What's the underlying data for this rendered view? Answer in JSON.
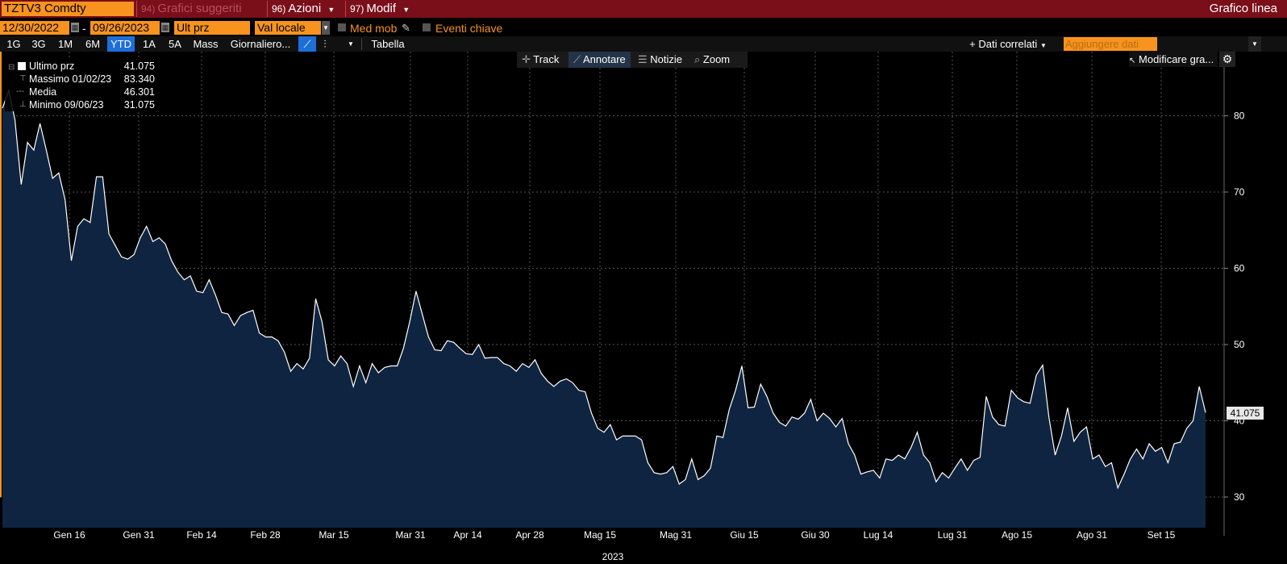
{
  "topbar": {
    "ticker": "TZTV3 Comdty",
    "grafici_num": "94)",
    "grafici_label": "Grafici suggeriti",
    "azioni_num": "96)",
    "azioni_label": "Azioni",
    "modif_num": "97)",
    "modif_label": "Modif",
    "title": "Grafico linea"
  },
  "controls": {
    "start_date": "12/30/2022",
    "end_date": "09/26/2023",
    "date_sep": "-",
    "field": "Ult prz",
    "currency": "Val locale",
    "moving_avg": "Med mob",
    "key_events": "Eventi chiave"
  },
  "periods": [
    "1G",
    "3G",
    "1M",
    "6M",
    "YTD",
    "1A",
    "5A",
    "Mass"
  ],
  "active_period": "YTD",
  "frequency": "Giornaliero...",
  "table_label": "Tabella",
  "related_data": "+ Dati correlati",
  "add_data_placeholder": "Aggiungere dati",
  "tools": {
    "track": "Track",
    "annotate": "Annotare",
    "news": "Notizie",
    "zoom": "Zoom"
  },
  "modify_graph": "Modificare gra...",
  "legend": {
    "last_label": "Ultimo prz",
    "last_value": "41.075",
    "max_label": "Massimo 01/02/23",
    "max_value": "83.340",
    "avg_label": "Media",
    "avg_value": "46.301",
    "min_label": "Minimo 09/06/23",
    "min_value": "31.075"
  },
  "last_tag": "41.075",
  "colors": {
    "accent": "#f7931e",
    "topbar": "#7a0f1a",
    "area_fill": "#0f2440",
    "line": "#ffffff",
    "grid": "#555555"
  },
  "chart_data": {
    "type": "area",
    "ylim": [
      26,
      85
    ],
    "yticks": [
      30,
      40,
      50,
      60,
      70,
      80
    ],
    "xticks": [
      "Gen 16",
      "Gen 31",
      "Feb 14",
      "Feb 28",
      "Mar 15",
      "Mar 31",
      "Apr 14",
      "Apr 28",
      "Mag 15",
      "Mag 31",
      "Giu 15",
      "Giu 30",
      "Lug 14",
      "Lug 31",
      "Ago 15",
      "Ago 31",
      "Set 15"
    ],
    "year_label": "2023",
    "grid": true,
    "values": [
      81.0,
      83.3,
      79.5,
      71.0,
      76.5,
      75.5,
      79.0,
      75.5,
      71.8,
      72.5,
      69.0,
      61.0,
      65.5,
      66.5,
      66.0,
      72.0,
      72.0,
      64.5,
      63.0,
      61.5,
      61.2,
      61.8,
      64.0,
      65.5,
      63.5,
      64.0,
      63.2,
      61.0,
      59.5,
      58.5,
      59.0,
      57.0,
      56.8,
      58.5,
      56.5,
      54.2,
      54.0,
      52.5,
      53.8,
      54.2,
      54.5,
      51.5,
      51.0,
      51.0,
      50.5,
      49.0,
      46.5,
      47.5,
      46.8,
      48.2,
      56.0,
      53.0,
      48.0,
      47.2,
      48.5,
      47.5,
      44.5,
      47.2,
      45.0,
      47.5,
      46.3,
      47.0,
      47.2,
      47.2,
      49.5,
      53.0,
      57.0,
      54.0,
      51.0,
      49.3,
      49.2,
      50.5,
      50.3,
      49.5,
      48.8,
      48.7,
      50.0,
      48.2,
      48.3,
      48.3,
      47.5,
      47.2,
      46.5,
      47.5,
      47.0,
      48.0,
      46.2,
      45.2,
      44.5,
      45.2,
      45.5,
      45.0,
      44.0,
      43.8,
      41.0,
      39.0,
      38.5,
      39.5,
      37.5,
      38.0,
      38.0,
      38.0,
      37.5,
      34.5,
      33.2,
      33.0,
      33.2,
      34.0,
      31.7,
      32.3,
      35.0,
      32.3,
      32.8,
      33.8,
      38.0,
      37.8,
      41.5,
      44.0,
      47.2,
      41.7,
      41.8,
      44.8,
      43.2,
      41.0,
      39.8,
      39.3,
      40.5,
      40.2,
      41.0,
      42.8,
      40.0,
      41.0,
      40.3,
      39.2,
      40.3,
      37.0,
      35.5,
      33.0,
      33.3,
      33.5,
      32.5,
      35.0,
      34.8,
      35.5,
      35.0,
      36.5,
      38.5,
      35.5,
      34.5,
      32.0,
      33.2,
      32.5,
      33.8,
      35.0,
      33.5,
      34.8,
      35.2,
      43.2,
      40.5,
      39.5,
      39.3,
      44.0,
      43.0,
      42.5,
      42.3,
      46.0,
      47.3,
      40.5,
      35.5,
      38.0,
      41.7,
      37.3,
      38.5,
      39.2,
      35.0,
      35.5,
      34.0,
      34.5,
      31.2,
      33.0,
      35.0,
      36.3,
      35.0,
      37.0,
      36.0,
      36.5,
      34.5,
      37.0,
      37.2,
      39.0,
      40.0,
      44.5,
      41.075
    ]
  }
}
